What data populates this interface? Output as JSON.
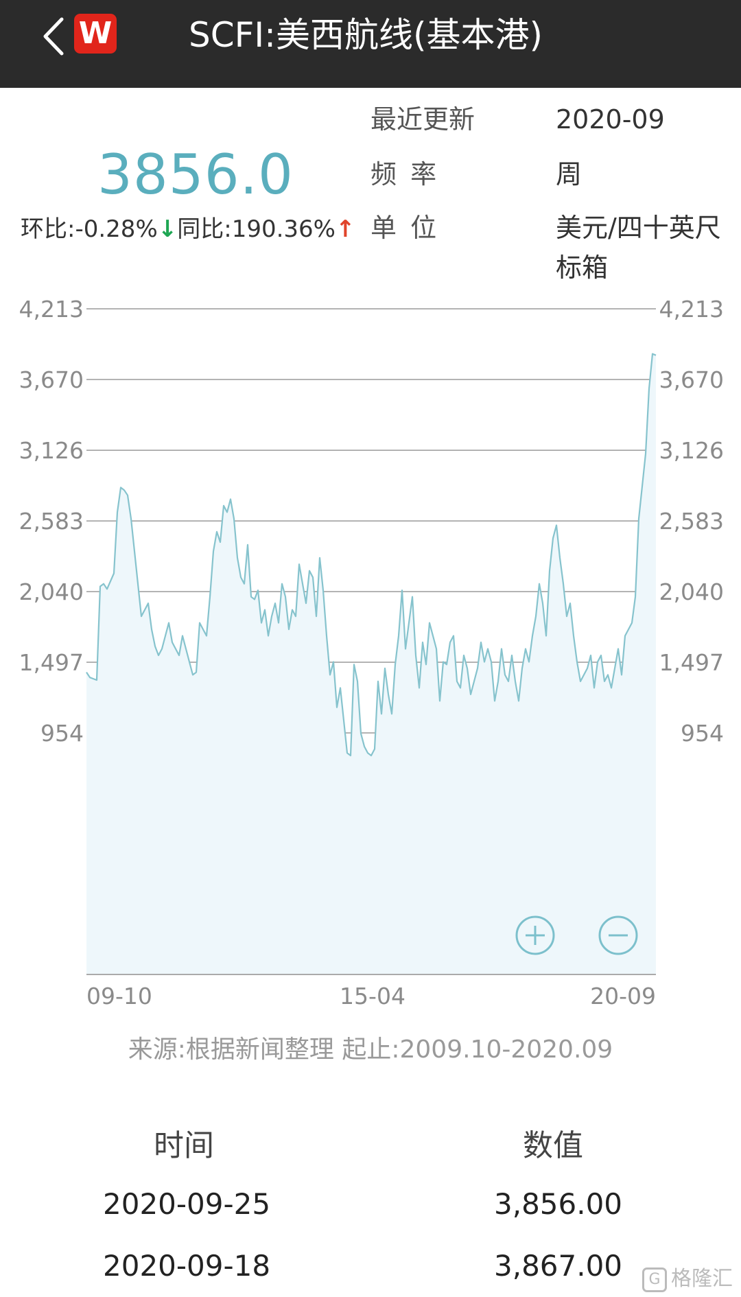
{
  "header": {
    "title": "SCFI:美西航线(基本港)",
    "logo_letter": "W",
    "back_icon": "chevron-left-icon"
  },
  "summary": {
    "value": "3856.0",
    "change_label": "环比:",
    "change_value": "-0.28%",
    "change_arrow": "↓",
    "yoy_label": "同比:",
    "yoy_value": "190.36%",
    "yoy_arrow": "↑"
  },
  "info": {
    "updated_label": "最近更新",
    "updated_value": "2020-09",
    "frequency_label": "频 率",
    "frequency_value": "周",
    "unit_label": "单 位",
    "unit_value_line1": "美元/四十英尺",
    "unit_value_line2": "标箱"
  },
  "chart_data": {
    "type": "area",
    "ylim": [
      400,
      4213
    ],
    "yticks": [
      4213,
      3670,
      3126,
      2583,
      2040,
      1497,
      954
    ],
    "ytick_labels": [
      "4,213",
      "3,670",
      "3,126",
      "2,583",
      "2,040",
      "1,497",
      "954"
    ],
    "xtick_labels": [
      "09-10",
      "15-04",
      "20-09"
    ],
    "x_start": "2009-10",
    "x_end": "2020-09",
    "series": [
      {
        "values": [
          1420,
          1380,
          1370,
          1360,
          2080,
          2100,
          2060,
          2120,
          2180,
          2650,
          2840,
          2820,
          2780,
          2600,
          2350,
          2100,
          1850,
          1900,
          1950,
          1750,
          1620,
          1550,
          1600,
          1700,
          1800,
          1650,
          1600,
          1550,
          1700,
          1600,
          1500,
          1400,
          1420,
          1800,
          1750,
          1700,
          2000,
          2350,
          2500,
          2420,
          2700,
          2650,
          2750,
          2600,
          2300,
          2150,
          2100,
          2400,
          2000,
          1980,
          2050,
          1800,
          1900,
          1700,
          1850,
          1950,
          1800,
          2100,
          2000,
          1750,
          1900,
          1850,
          2250,
          2100,
          1950,
          2200,
          2150,
          1850,
          2300,
          2050,
          1700,
          1400,
          1500,
          1150,
          1300,
          1050,
          800,
          780,
          1480,
          1350,
          950,
          850,
          800,
          780,
          830,
          1350,
          1100,
          1450,
          1250,
          1100,
          1480,
          1700,
          2050,
          1600,
          1800,
          2000,
          1550,
          1300,
          1650,
          1480,
          1800,
          1700,
          1600,
          1200,
          1500,
          1480,
          1650,
          1700,
          1350,
          1300,
          1550,
          1450,
          1250,
          1350,
          1450,
          1650,
          1500,
          1600,
          1500,
          1200,
          1350,
          1600,
          1400,
          1350,
          1550,
          1350,
          1200,
          1450,
          1600,
          1500,
          1700,
          1850,
          2100,
          1950,
          1700,
          2200,
          2450,
          2550,
          2300,
          2100,
          1850,
          1950,
          1700,
          1500,
          1350,
          1400,
          1450,
          1550,
          1300,
          1500,
          1550,
          1350,
          1400,
          1300,
          1450,
          1600,
          1400,
          1700,
          1750,
          1800,
          2000,
          2600,
          2850,
          3100,
          3600,
          3867,
          3856
        ]
      }
    ]
  },
  "zoom": {
    "in_icon": "zoom-in-icon",
    "out_icon": "zoom-out-icon"
  },
  "source_text": "来源:根据新闻整理 起止:2009.10-2020.09",
  "table": {
    "headers": [
      "时间",
      "数值"
    ],
    "rows": [
      {
        "date": "2020-09-25",
        "value": "3,856.00"
      },
      {
        "date": "2020-09-18",
        "value": "3,867.00"
      }
    ]
  },
  "watermark": "格隆汇",
  "colors": {
    "accent": "#5aaebd",
    "line": "#86c3cd",
    "fill": "#eef7fb",
    "down": "#1ea653",
    "up": "#e0442b",
    "header_bg": "#2b2b2b",
    "logo_bg": "#e1251b"
  }
}
